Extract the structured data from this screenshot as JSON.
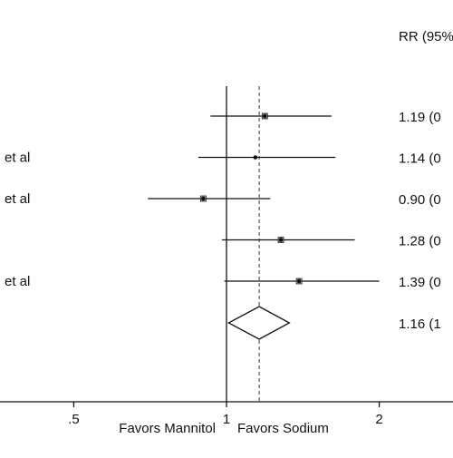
{
  "chart_data": {
    "type": "forest",
    "column_header": "RR (95%",
    "studies": [
      {
        "label": "",
        "rr": 1.19,
        "lo": 0.93,
        "hi": 1.61,
        "rr_text": "1.19 (0"
      },
      {
        "label": "et al",
        "rr": 1.14,
        "lo": 0.88,
        "hi": 1.64,
        "rr_text": "1.14 (0"
      },
      {
        "label": "et al",
        "rr": 0.9,
        "lo": 0.7,
        "hi": 1.22,
        "rr_text": "0.90 (0"
      },
      {
        "label": "",
        "rr": 1.28,
        "lo": 0.98,
        "hi": 1.79,
        "rr_text": "1.28 (0"
      },
      {
        "label": "et al",
        "rr": 1.39,
        "lo": 0.99,
        "hi": 2.0,
        "rr_text": "1.39 (0"
      }
    ],
    "overall": {
      "rr": 1.16,
      "lo": 1.01,
      "hi": 1.33,
      "rr_text": "1.16 (1"
    },
    "x_ticks": [
      {
        "value": 0.5,
        "label": ".5"
      },
      {
        "value": 1,
        "label": "1"
      },
      {
        "value": 2,
        "label": "2"
      }
    ],
    "x_scale": "log",
    "xlim": [
      0.4,
      2.5
    ],
    "null_line": 1,
    "left_direction_label": "Favors Mannitol",
    "right_direction_label": "Favors Sodium"
  }
}
